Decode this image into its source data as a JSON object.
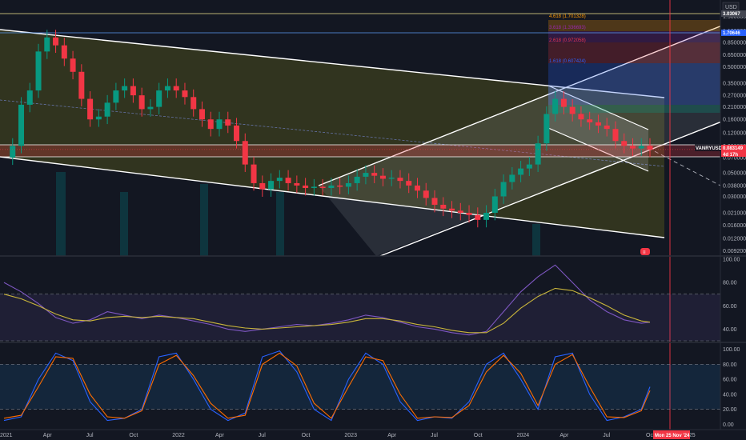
{
  "currency_label": "USD",
  "ticker_tag": "VANRYUSDT",
  "price_tags": [
    {
      "text": "0.083149",
      "color": "#f23645"
    },
    {
      "text": "4d 17h",
      "color": "#f23645"
    },
    {
      "text": "1.70646",
      "color": "#2962ff"
    },
    {
      "text": "3.03067",
      "color": "#787b86"
    }
  ],
  "fib_labels": [
    {
      "text": "4.618 (1.701328)",
      "color": "#ff9800"
    },
    {
      "text": "3.618 (1.336693)",
      "color": "#9c27b0"
    },
    {
      "text": "2.618 (0.972058)",
      "color": "#f23645"
    },
    {
      "text": "1.618 (0.607424)",
      "color": "#2962ff"
    }
  ],
  "cursor_date": "Mon 25 Nov '24",
  "alert_badge": "≡",
  "chart_data": [
    {
      "type": "candlestick",
      "title": "",
      "log_scale": true,
      "y_ticks": [
        "1.500000",
        "1.100000",
        "0.850000",
        "0.650000",
        "0.500000",
        "0.350000",
        "0.270000",
        "0.210000",
        "0.160000",
        "0.120000",
        "0.090000",
        "0.070000",
        "0.050000",
        "0.038000",
        "0.030000",
        "0.021000",
        "0.016000",
        "0.012000",
        "0.009200"
      ],
      "x_ticks": [
        "2021",
        "Apr",
        "Jul",
        "Oct",
        "2022",
        "Apr",
        "Jul",
        "Oct",
        "2023",
        "Apr",
        "Jul",
        "Oct",
        "2024",
        "Apr",
        "Jul",
        "Oct",
        "25"
      ],
      "last_price": 0.083149,
      "ylim": [
        0.0085,
        2.0
      ],
      "series": [
        {
          "name": "",
          "points": [
            [
              2021.0,
              0.07
            ],
            [
              2021.05,
              0.09
            ],
            [
              2021.1,
              0.22
            ],
            [
              2021.15,
              0.3
            ],
            [
              2021.2,
              0.7
            ],
            [
              2021.25,
              0.95
            ],
            [
              2021.3,
              0.8
            ],
            [
              2021.35,
              0.6
            ],
            [
              2021.4,
              0.45
            ],
            [
              2021.45,
              0.25
            ],
            [
              2021.5,
              0.16
            ],
            [
              2021.55,
              0.17
            ],
            [
              2021.6,
              0.23
            ],
            [
              2021.65,
              0.3
            ],
            [
              2021.7,
              0.33
            ],
            [
              2021.75,
              0.27
            ],
            [
              2021.8,
              0.2
            ],
            [
              2021.85,
              0.21
            ],
            [
              2021.9,
              0.3
            ],
            [
              2021.95,
              0.33
            ],
            [
              2022.0,
              0.3
            ],
            [
              2022.05,
              0.26
            ],
            [
              2022.1,
              0.2
            ],
            [
              2022.15,
              0.16
            ],
            [
              2022.2,
              0.13
            ],
            [
              2022.25,
              0.16
            ],
            [
              2022.3,
              0.14
            ],
            [
              2022.35,
              0.1
            ],
            [
              2022.4,
              0.06
            ],
            [
              2022.45,
              0.04
            ],
            [
              2022.5,
              0.035
            ],
            [
              2022.55,
              0.042
            ],
            [
              2022.6,
              0.045
            ],
            [
              2022.65,
              0.04
            ],
            [
              2022.7,
              0.038
            ],
            [
              2022.75,
              0.036
            ],
            [
              2022.8,
              0.037
            ],
            [
              2022.85,
              0.036
            ],
            [
              2022.9,
              0.038
            ],
            [
              2022.95,
              0.037
            ],
            [
              2023.0,
              0.04
            ],
            [
              2023.05,
              0.046
            ],
            [
              2023.1,
              0.05
            ],
            [
              2023.15,
              0.047
            ],
            [
              2023.2,
              0.044
            ],
            [
              2023.25,
              0.045
            ],
            [
              2023.3,
              0.042
            ],
            [
              2023.35,
              0.038
            ],
            [
              2023.4,
              0.034
            ],
            [
              2023.45,
              0.029
            ],
            [
              2023.5,
              0.025
            ],
            [
              2023.55,
              0.023
            ],
            [
              2023.6,
              0.022
            ],
            [
              2023.65,
              0.021
            ],
            [
              2023.7,
              0.02
            ],
            [
              2023.75,
              0.018
            ],
            [
              2023.8,
              0.021
            ],
            [
              2023.85,
              0.03
            ],
            [
              2023.9,
              0.041
            ],
            [
              2023.95,
              0.048
            ],
            [
              2024.0,
              0.055
            ],
            [
              2024.05,
              0.06
            ],
            [
              2024.1,
              0.095
            ],
            [
              2024.15,
              0.18
            ],
            [
              2024.2,
              0.25
            ],
            [
              2024.25,
              0.21
            ],
            [
              2024.3,
              0.18
            ],
            [
              2024.35,
              0.16
            ],
            [
              2024.4,
              0.15
            ],
            [
              2024.45,
              0.14
            ],
            [
              2024.5,
              0.13
            ],
            [
              2024.55,
              0.1
            ],
            [
              2024.6,
              0.09
            ],
            [
              2024.65,
              0.085
            ],
            [
              2024.7,
              0.09
            ],
            [
              2024.75,
              0.083
            ]
          ]
        }
      ]
    },
    {
      "type": "line",
      "title": "",
      "y_ticks": [
        "100.00",
        "80.00",
        "60.00",
        "40.00"
      ],
      "ylim": [
        30,
        100
      ],
      "series": [
        {
          "name": "",
          "x": [
            2021.0,
            2021.1,
            2021.2,
            2021.3,
            2021.4,
            2021.5,
            2021.6,
            2021.7,
            2021.8,
            2021.9,
            2022.0,
            2022.1,
            2022.2,
            2022.3,
            2022.4,
            2022.5,
            2022.6,
            2022.7,
            2022.8,
            2022.9,
            2023.0,
            2023.1,
            2023.2,
            2023.3,
            2023.4,
            2023.5,
            2023.6,
            2023.7,
            2023.8,
            2023.9,
            2024.0,
            2024.1,
            2024.2,
            2024.3,
            2024.4,
            2024.5,
            2024.6,
            2024.7,
            2024.75
          ],
          "values": [
            80,
            72,
            62,
            50,
            45,
            48,
            55,
            52,
            49,
            52,
            50,
            47,
            44,
            40,
            38,
            40,
            42,
            44,
            43,
            45,
            48,
            52,
            50,
            46,
            42,
            40,
            37,
            35,
            38,
            55,
            72,
            85,
            95,
            80,
            65,
            55,
            48,
            45,
            46
          ]
        },
        {
          "name": "",
          "x": [
            2021.0,
            2021.1,
            2021.2,
            2021.3,
            2021.4,
            2021.5,
            2021.6,
            2021.7,
            2021.8,
            2021.9,
            2022.0,
            2022.1,
            2022.2,
            2022.3,
            2022.4,
            2022.5,
            2022.6,
            2022.7,
            2022.8,
            2022.9,
            2023.0,
            2023.1,
            2023.2,
            2023.3,
            2023.4,
            2023.5,
            2023.6,
            2023.7,
            2023.8,
            2023.9,
            2024.0,
            2024.1,
            2024.2,
            2024.3,
            2024.4,
            2024.5,
            2024.6,
            2024.7,
            2024.75
          ],
          "values": [
            70,
            66,
            60,
            53,
            48,
            47,
            50,
            51,
            50,
            51,
            50,
            49,
            46,
            43,
            41,
            40,
            41,
            42,
            43,
            44,
            46,
            49,
            49,
            47,
            44,
            42,
            39,
            37,
            37,
            45,
            58,
            68,
            75,
            73,
            67,
            60,
            52,
            47,
            46
          ]
        }
      ]
    },
    {
      "type": "line",
      "title": "",
      "y_ticks": [
        "100.00",
        "80.00",
        "60.00",
        "40.00",
        "20.00",
        "0.00"
      ],
      "ylim": [
        -5,
        105
      ],
      "series": [
        {
          "name": "",
          "x": [
            2021.0,
            2021.1,
            2021.2,
            2021.3,
            2021.4,
            2021.5,
            2021.6,
            2021.7,
            2021.8,
            2021.9,
            2022.0,
            2022.1,
            2022.2,
            2022.3,
            2022.4,
            2022.5,
            2022.6,
            2022.7,
            2022.8,
            2022.9,
            2023.0,
            2023.1,
            2023.2,
            2023.3,
            2023.4,
            2023.5,
            2023.6,
            2023.7,
            2023.8,
            2023.9,
            2024.0,
            2024.1,
            2024.2,
            2024.3,
            2024.4,
            2024.5,
            2024.6,
            2024.7,
            2024.75
          ],
          "values": [
            5,
            10,
            60,
            95,
            85,
            30,
            5,
            8,
            20,
            90,
            95,
            60,
            20,
            5,
            15,
            90,
            98,
            70,
            20,
            5,
            60,
            95,
            80,
            30,
            5,
            10,
            8,
            30,
            80,
            95,
            60,
            20,
            90,
            95,
            40,
            5,
            10,
            20,
            50
          ]
        },
        {
          "name": "",
          "x": [
            2021.0,
            2021.1,
            2021.2,
            2021.3,
            2021.4,
            2021.5,
            2021.6,
            2021.7,
            2021.8,
            2021.9,
            2022.0,
            2022.1,
            2022.2,
            2022.3,
            2022.4,
            2022.5,
            2022.6,
            2022.7,
            2022.8,
            2022.9,
            2023.0,
            2023.1,
            2023.2,
            2023.3,
            2023.4,
            2023.5,
            2023.6,
            2023.7,
            2023.8,
            2023.9,
            2024.0,
            2024.1,
            2024.2,
            2024.3,
            2024.4,
            2024.5,
            2024.6,
            2024.7,
            2024.75
          ],
          "values": [
            8,
            12,
            50,
            90,
            88,
            40,
            10,
            8,
            18,
            80,
            92,
            65,
            28,
            8,
            12,
            80,
            95,
            78,
            28,
            8,
            50,
            90,
            85,
            40,
            8,
            10,
            9,
            25,
            70,
            92,
            68,
            25,
            80,
            93,
            50,
            10,
            9,
            18,
            45
          ]
        }
      ]
    }
  ]
}
